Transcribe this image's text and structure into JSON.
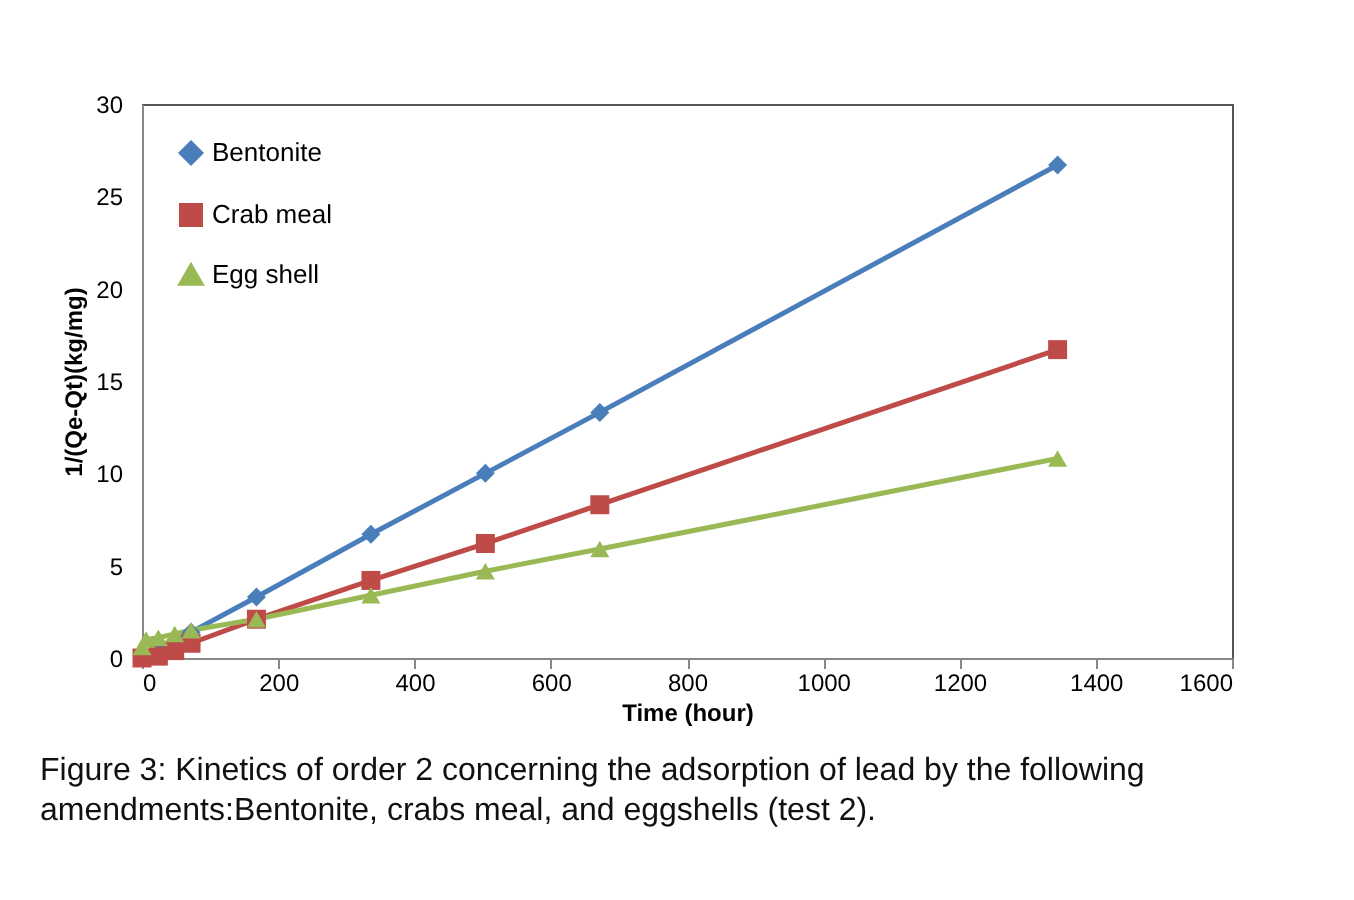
{
  "chart_data": {
    "type": "line",
    "xlabel": "Time (hour)",
    "ylabel": "1/(Qe-Qt)(kg/mg)",
    "xlim": [
      0,
      1600
    ],
    "xticks": [
      0,
      200,
      400,
      600,
      800,
      1000,
      1200,
      1400,
      1600
    ],
    "ylim": [
      0,
      30
    ],
    "yticks": [
      0,
      5,
      10,
      15,
      20,
      25,
      30
    ],
    "grid": false,
    "legend": "top left",
    "series": [
      {
        "name": "Bentonite",
        "color": "#4a7ebb",
        "marker": "diamond",
        "x": [
          0,
          24,
          48,
          72,
          168,
          336,
          504,
          672,
          1344
        ],
        "values": [
          0.1,
          0.4,
          0.9,
          1.4,
          3.3,
          6.7,
          10,
          13.3,
          26.7
        ]
      },
      {
        "name": "Crab meal",
        "color": "#be4b48",
        "marker": "square",
        "x": [
          0,
          24,
          48,
          72,
          168,
          336,
          504,
          672,
          1344
        ],
        "values": [
          0,
          0.1,
          0.4,
          0.8,
          2.1,
          4.2,
          6.2,
          8.3,
          16.7
        ]
      },
      {
        "name": "Egg shell",
        "color": "#98b954",
        "marker": "triangle",
        "x": [
          0,
          6,
          24,
          48,
          72,
          168,
          336,
          504,
          672,
          1344
        ],
        "values": [
          0.6,
          1,
          1.1,
          1.3,
          1.5,
          2.1,
          3.4,
          4.7,
          5.9,
          10.8
        ]
      }
    ],
    "annotations": [
      "Figure 3: Kinetics of order 2 concerning the adsorption of lead by the following amendments:Bentonite, crabs meal, and eggshells (test 2)."
    ]
  }
}
